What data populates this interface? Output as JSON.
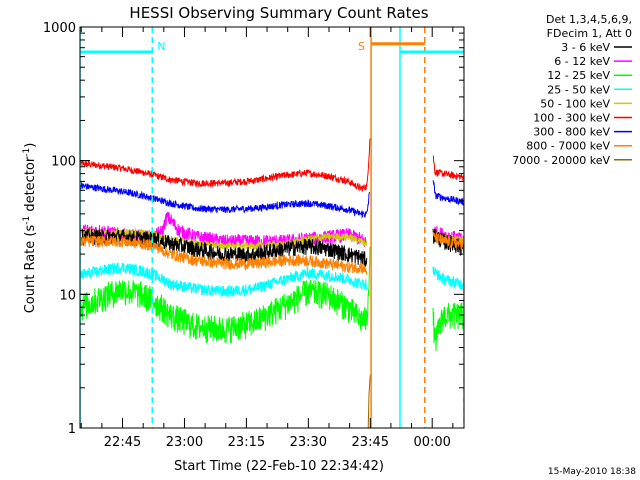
{
  "chart_data": {
    "type": "line",
    "title": "HESSI Observing Summary Count Rates",
    "xlabel": "Start Time (22-Feb-10 22:34:42)",
    "ylabel_main": "Count Rate (s",
    "ylabel_sup1": "-1",
    "ylabel_mid": " detector",
    "ylabel_sup2": "-1",
    "ylabel_end": ")",
    "yscale": "log",
    "ylim": [
      1,
      1000
    ],
    "xlim_minutes": [
      0,
      93
    ],
    "x_tick_labels": [
      "22:45",
      "23:00",
      "23:15",
      "23:30",
      "23:45",
      "00:00"
    ],
    "x_tick_minutes": [
      10.3,
      25.3,
      40.3,
      55.3,
      70.3,
      85.3
    ],
    "y_tick_labels": [
      "1",
      "10",
      "100",
      "1000"
    ],
    "y_tick_values": [
      1,
      10,
      100,
      1000
    ],
    "legend": {
      "header_line1": "Det 1,3,4,5,6,9,",
      "header_line2": "FDecim 1, Att 0",
      "entries": [
        {
          "label": "3 - 6 keV",
          "color": "#000000"
        },
        {
          "label": "6 - 12 keV",
          "color": "#ff00ff"
        },
        {
          "label": "12 - 25 keV",
          "color": "#00ff00"
        },
        {
          "label": "25 - 50 keV",
          "color": "#00ffff"
        },
        {
          "label": "50 - 100 keV",
          "color": "#cccc00"
        },
        {
          "label": "100 - 300 keV",
          "color": "#ff0000"
        },
        {
          "label": "300 - 800 keV",
          "color": "#0000ff"
        },
        {
          "label": "800 - 7000 keV",
          "color": "#ff8000"
        },
        {
          "label": "7000 - 20000 keV",
          "color": "#996600"
        }
      ]
    },
    "annotations": [
      {
        "text": "N",
        "color": "#00ffff",
        "x_minutes": 17.5
      },
      {
        "text": "S",
        "color": "#ff8000",
        "x_minutes": 69.5
      }
    ],
    "bars": [
      {
        "name": "night",
        "color": "#00ffff",
        "from_minutes": 0,
        "to_minutes": 17.5,
        "level": 650
      },
      {
        "name": "saa",
        "color": "#ff8000",
        "from_minutes": 70.5,
        "to_minutes": 83.5,
        "level": 750
      },
      {
        "name": "night2",
        "color": "#00ffff",
        "from_minutes": 77.5,
        "to_minutes": 93,
        "level": 650
      }
    ],
    "vlines": [
      {
        "color": "#00ffff",
        "x_minutes": 0,
        "style": "solid"
      },
      {
        "color": "#00ffff",
        "x_minutes": 17.5,
        "style": "dashed"
      },
      {
        "color": "#ff8000",
        "x_minutes": 70.5,
        "style": "solid"
      },
      {
        "color": "#00ffff",
        "x_minutes": 77.5,
        "style": "solid"
      },
      {
        "color": "#ff8000",
        "x_minutes": 83.5,
        "style": "dashed"
      },
      {
        "color": "#00ffff",
        "x_minutes": 93,
        "style": "dashed"
      }
    ],
    "gap_minutes": [
      70.5,
      85.5
    ],
    "series": [
      {
        "name": "100 - 300 keV",
        "color": "#ff0000",
        "noise": 0.03,
        "values": [
          [
            0,
            95
          ],
          [
            5,
            92
          ],
          [
            10,
            88
          ],
          [
            15,
            82
          ],
          [
            18,
            78
          ],
          [
            22,
            72
          ],
          [
            28,
            68
          ],
          [
            35,
            68
          ],
          [
            42,
            71
          ],
          [
            50,
            78
          ],
          [
            55,
            81
          ],
          [
            60,
            77
          ],
          [
            65,
            70
          ],
          [
            68,
            62
          ],
          [
            69.5,
            64
          ],
          [
            70,
            110
          ],
          [
            70.3,
            160
          ]
        ],
        "post": [
          [
            85.5,
            110
          ],
          [
            86,
            82
          ],
          [
            89,
            79
          ],
          [
            92,
            76
          ],
          [
            93,
            75
          ]
        ]
      },
      {
        "name": "300 - 800 keV",
        "color": "#0000ff",
        "noise": 0.03,
        "values": [
          [
            0,
            65
          ],
          [
            5,
            62
          ],
          [
            10,
            59
          ],
          [
            15,
            55
          ],
          [
            18,
            52
          ],
          [
            22,
            48
          ],
          [
            28,
            44
          ],
          [
            35,
            43
          ],
          [
            42,
            44
          ],
          [
            50,
            47
          ],
          [
            55,
            48
          ],
          [
            60,
            46
          ],
          [
            65,
            43
          ],
          [
            68,
            40
          ],
          [
            69.5,
            40
          ],
          [
            70.2,
            60
          ]
        ],
        "post": [
          [
            85.5,
            75
          ],
          [
            86,
            55
          ],
          [
            89,
            52
          ],
          [
            92,
            50
          ],
          [
            93,
            49
          ]
        ]
      },
      {
        "name": "6 - 12 keV",
        "color": "#ff00ff",
        "noise": 0.06,
        "values": [
          [
            0,
            30
          ],
          [
            5,
            30
          ],
          [
            10,
            28
          ],
          [
            15,
            27
          ],
          [
            18,
            27
          ],
          [
            20,
            30
          ],
          [
            21,
            38
          ],
          [
            22,
            36
          ],
          [
            24,
            30
          ],
          [
            28,
            27
          ],
          [
            35,
            25
          ],
          [
            42,
            25
          ],
          [
            50,
            25
          ],
          [
            55,
            26
          ],
          [
            60,
            27
          ],
          [
            65,
            28
          ],
          [
            68,
            26
          ],
          [
            69.5,
            24
          ]
        ],
        "post": [
          [
            85.5,
            30
          ],
          [
            88,
            28
          ],
          [
            92,
            26
          ],
          [
            93,
            25
          ]
        ]
      },
      {
        "name": "50 - 100 keV",
        "color": "#cccc00",
        "noise": 0.03,
        "values": [
          [
            0,
            30
          ],
          [
            5,
            29
          ],
          [
            10,
            29
          ],
          [
            15,
            29
          ],
          [
            18,
            28
          ],
          [
            22,
            26
          ],
          [
            28,
            24
          ],
          [
            35,
            23
          ],
          [
            42,
            23
          ],
          [
            50,
            24
          ],
          [
            55,
            26
          ],
          [
            60,
            27
          ],
          [
            65,
            27
          ],
          [
            68,
            25
          ],
          [
            69.5,
            24
          ]
        ],
        "post": [
          [
            85.5,
            28
          ],
          [
            88,
            27
          ],
          [
            92,
            26
          ],
          [
            93,
            26
          ]
        ]
      },
      {
        "name": "3 - 6 keV",
        "color": "#000000",
        "noise": 0.07,
        "values": [
          [
            0,
            27
          ],
          [
            5,
            27
          ],
          [
            10,
            27
          ],
          [
            15,
            26
          ],
          [
            18,
            26
          ],
          [
            22,
            24
          ],
          [
            28,
            22
          ],
          [
            35,
            20
          ],
          [
            42,
            20
          ],
          [
            50,
            22
          ],
          [
            55,
            23
          ],
          [
            60,
            22
          ],
          [
            65,
            20
          ],
          [
            68,
            19
          ],
          [
            69.5,
            18
          ]
        ],
        "post": [
          [
            85.5,
            28
          ],
          [
            88,
            25
          ],
          [
            92,
            23
          ],
          [
            93,
            22
          ]
        ]
      },
      {
        "name": "800 - 7000 keV",
        "color": "#ff8000",
        "noise": 0.05,
        "values": [
          [
            0,
            25
          ],
          [
            5,
            25
          ],
          [
            10,
            25
          ],
          [
            15,
            24
          ],
          [
            18,
            23
          ],
          [
            22,
            20
          ],
          [
            28,
            18
          ],
          [
            35,
            17
          ],
          [
            42,
            17
          ],
          [
            50,
            18
          ],
          [
            55,
            18
          ],
          [
            60,
            17
          ],
          [
            65,
            16
          ],
          [
            68,
            16
          ],
          [
            69.5,
            15
          ]
        ],
        "post": [
          [
            85.5,
            27
          ],
          [
            88,
            25
          ],
          [
            92,
            24
          ],
          [
            93,
            24
          ]
        ]
      },
      {
        "name": "25 - 50 keV",
        "color": "#00ffff",
        "noise": 0.05,
        "values": [
          [
            0,
            14
          ],
          [
            5,
            15
          ],
          [
            10,
            16
          ],
          [
            15,
            15
          ],
          [
            18,
            14
          ],
          [
            22,
            12
          ],
          [
            28,
            11
          ],
          [
            35,
            10.5
          ],
          [
            42,
            11
          ],
          [
            50,
            13
          ],
          [
            55,
            14.5
          ],
          [
            60,
            14
          ],
          [
            65,
            13
          ],
          [
            68,
            12
          ],
          [
            69.5,
            12
          ]
        ],
        "post": [
          [
            85.5,
            15
          ],
          [
            88,
            13
          ],
          [
            92,
            12
          ],
          [
            93,
            12
          ]
        ]
      },
      {
        "name": "12 - 25 keV",
        "color": "#00ff00",
        "noise": 0.12,
        "values": [
          [
            0,
            8
          ],
          [
            5,
            9.5
          ],
          [
            10,
            11
          ],
          [
            15,
            10
          ],
          [
            18,
            9
          ],
          [
            22,
            7
          ],
          [
            28,
            5.8
          ],
          [
            35,
            5.5
          ],
          [
            42,
            6.2
          ],
          [
            50,
            8.5
          ],
          [
            55,
            10.5
          ],
          [
            60,
            10
          ],
          [
            65,
            8
          ],
          [
            68,
            6.5
          ],
          [
            69.5,
            6.5
          ],
          [
            70,
            14
          ],
          [
            70.3,
            20
          ]
        ],
        "post": [
          [
            85.5,
            7
          ],
          [
            86,
            4.5
          ],
          [
            88,
            7
          ],
          [
            92,
            7
          ],
          [
            93,
            7
          ]
        ]
      },
      {
        "name": "7000 - 20000 keV",
        "color": "#996600",
        "noise": 0,
        "values": [
          [
            69.8,
            1
          ],
          [
            70,
            1.8
          ],
          [
            70.3,
            2.5
          ]
        ],
        "post": []
      }
    ]
  },
  "timestamp": "15-May-2010 18:38"
}
